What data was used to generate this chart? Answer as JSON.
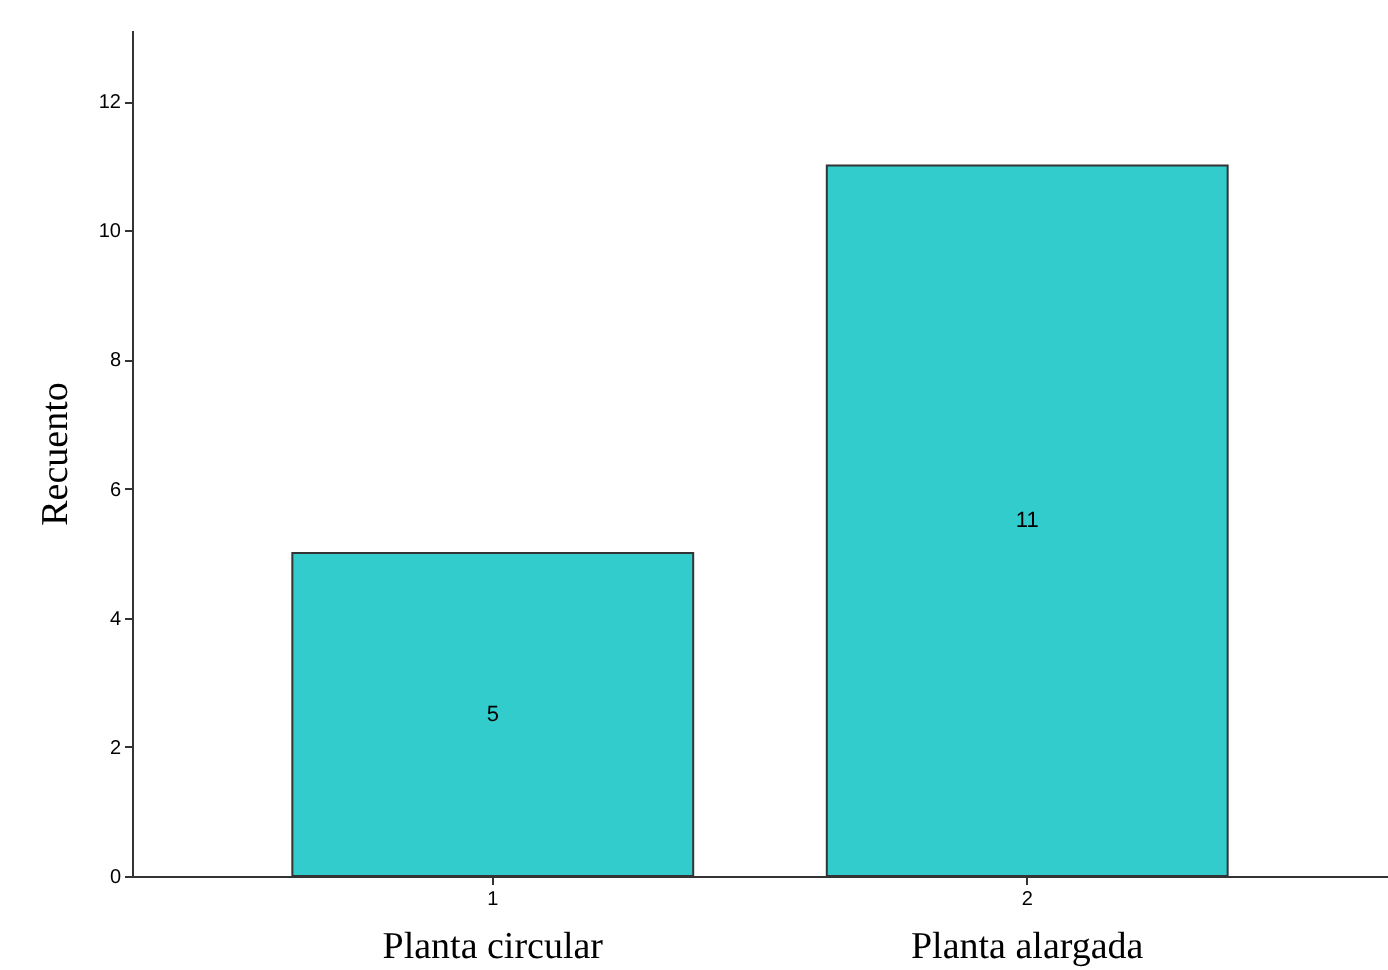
{
  "chart_data": {
    "type": "bar",
    "ylabel": "Recuento",
    "categories": [
      "1",
      "2"
    ],
    "values": [
      5,
      11
    ],
    "color": "#33cccc",
    "ylim": [
      0,
      13.1
    ],
    "yticks": [
      0,
      2,
      4,
      6,
      8,
      10,
      12
    ],
    "grid": false,
    "data_labels": true,
    "annotations": [
      "Planta circular",
      "Planta alargada"
    ]
  }
}
